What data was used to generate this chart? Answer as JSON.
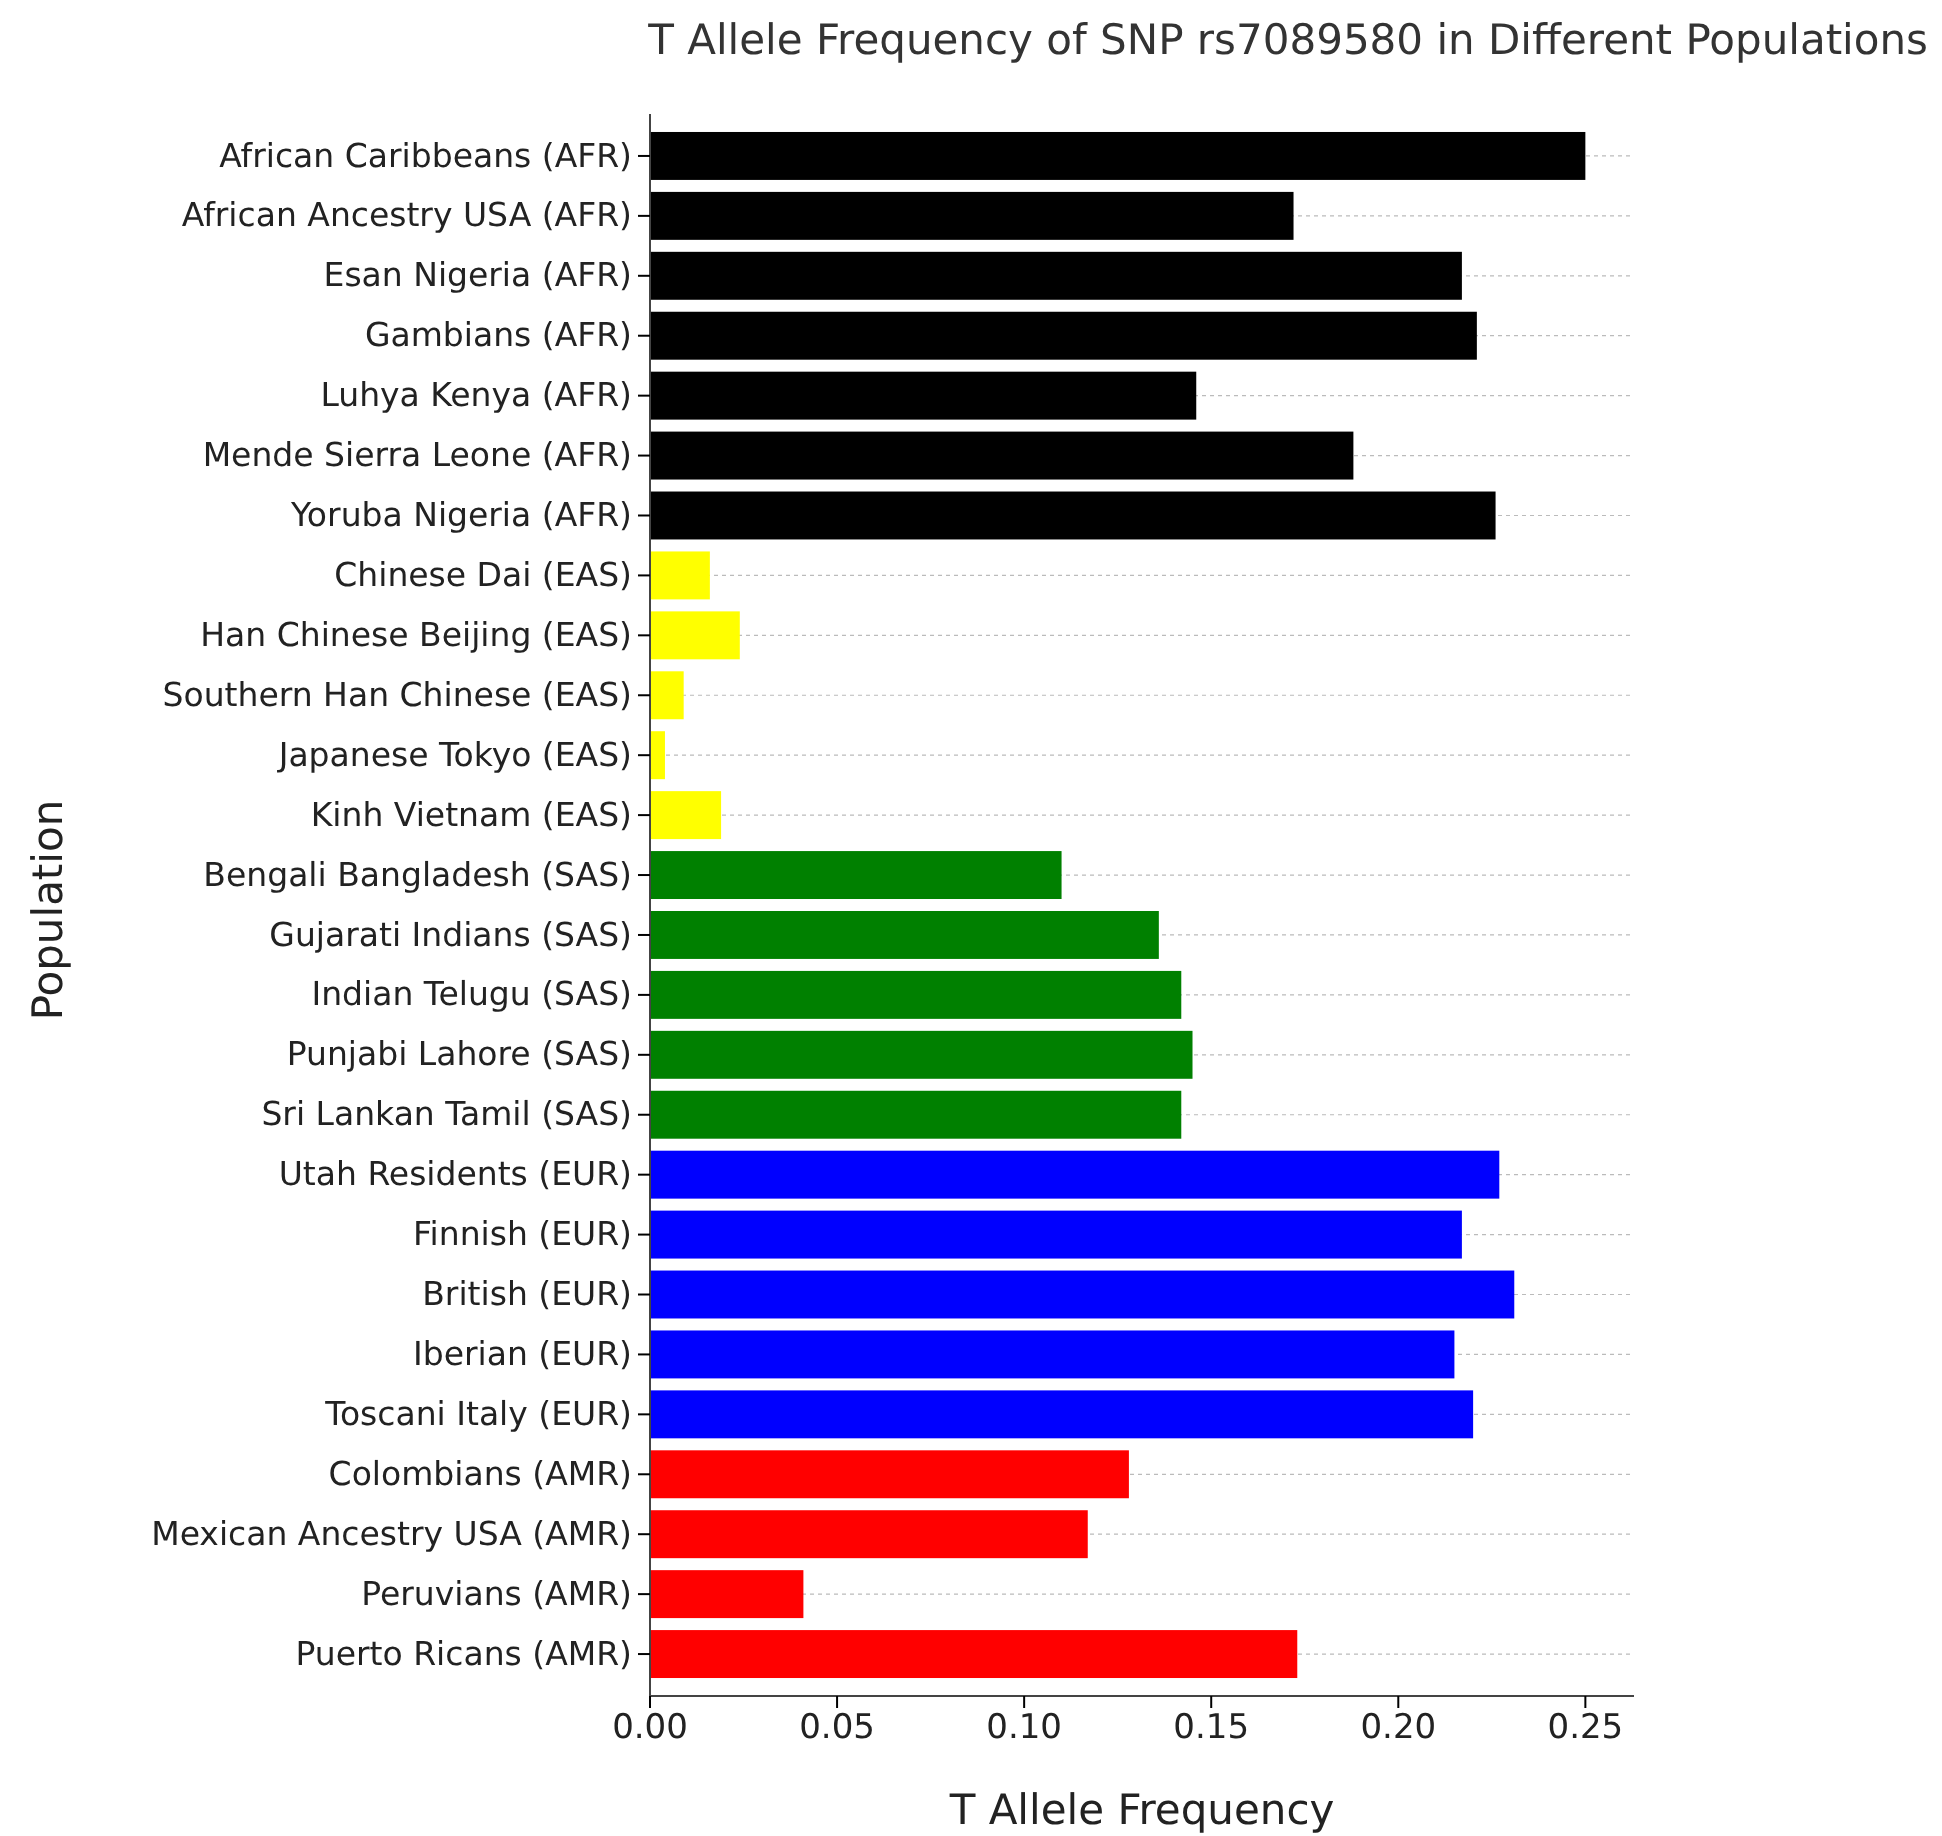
{
  "chart_data": {
    "type": "bar",
    "orientation": "horizontal",
    "title": "T Allele Frequency of SNP rs7089580 in Different Populations",
    "xlabel": "T Allele Frequency",
    "ylabel": "Population",
    "categories": [
      "African Caribbeans (AFR)",
      "African Ancestry USA (AFR)",
      "Esan Nigeria (AFR)",
      "Gambians (AFR)",
      "Luhya Kenya (AFR)",
      "Mende Sierra Leone (AFR)",
      "Yoruba Nigeria (AFR)",
      "Chinese Dai (EAS)",
      "Han Chinese Beijing (EAS)",
      "Southern Han Chinese (EAS)",
      "Japanese Tokyo (EAS)",
      "Kinh Vietnam (EAS)",
      "Bengali Bangladesh (SAS)",
      "Gujarati Indians (SAS)",
      "Indian Telugu (SAS)",
      "Punjabi Lahore (SAS)",
      "Sri Lankan Tamil (SAS)",
      "Utah Residents (EUR)",
      "Finnish (EUR)",
      "British (EUR)",
      "Iberian (EUR)",
      "Toscani Italy (EUR)",
      "Colombians (AMR)",
      "Mexican Ancestry USA (AMR)",
      "Peruvians (AMR)",
      "Puerto Ricans (AMR)"
    ],
    "values": [
      0.25,
      0.172,
      0.217,
      0.221,
      0.146,
      0.188,
      0.226,
      0.016,
      0.024,
      0.009,
      0.004,
      0.019,
      0.11,
      0.136,
      0.142,
      0.145,
      0.142,
      0.227,
      0.217,
      0.231,
      0.215,
      0.22,
      0.128,
      0.117,
      0.041,
      0.173
    ],
    "colors": [
      "#000000",
      "#000000",
      "#000000",
      "#000000",
      "#000000",
      "#000000",
      "#000000",
      "#ffff00",
      "#ffff00",
      "#ffff00",
      "#ffff00",
      "#ffff00",
      "#008000",
      "#008000",
      "#008000",
      "#008000",
      "#008000",
      "#0000ff",
      "#0000ff",
      "#0000ff",
      "#0000ff",
      "#0000ff",
      "#ff0000",
      "#ff0000",
      "#ff0000",
      "#ff0000"
    ],
    "xlim": [
      0,
      0.263
    ],
    "xticks": [
      {
        "value": 0,
        "label": "0.00"
      },
      {
        "value": 0.05,
        "label": "0.05"
      },
      {
        "value": 0.1,
        "label": "0.10"
      },
      {
        "value": 0.15,
        "label": "0.15"
      },
      {
        "value": 0.2,
        "label": "0.20"
      },
      {
        "value": 0.25,
        "label": "0.25"
      }
    ],
    "grid": "y"
  }
}
